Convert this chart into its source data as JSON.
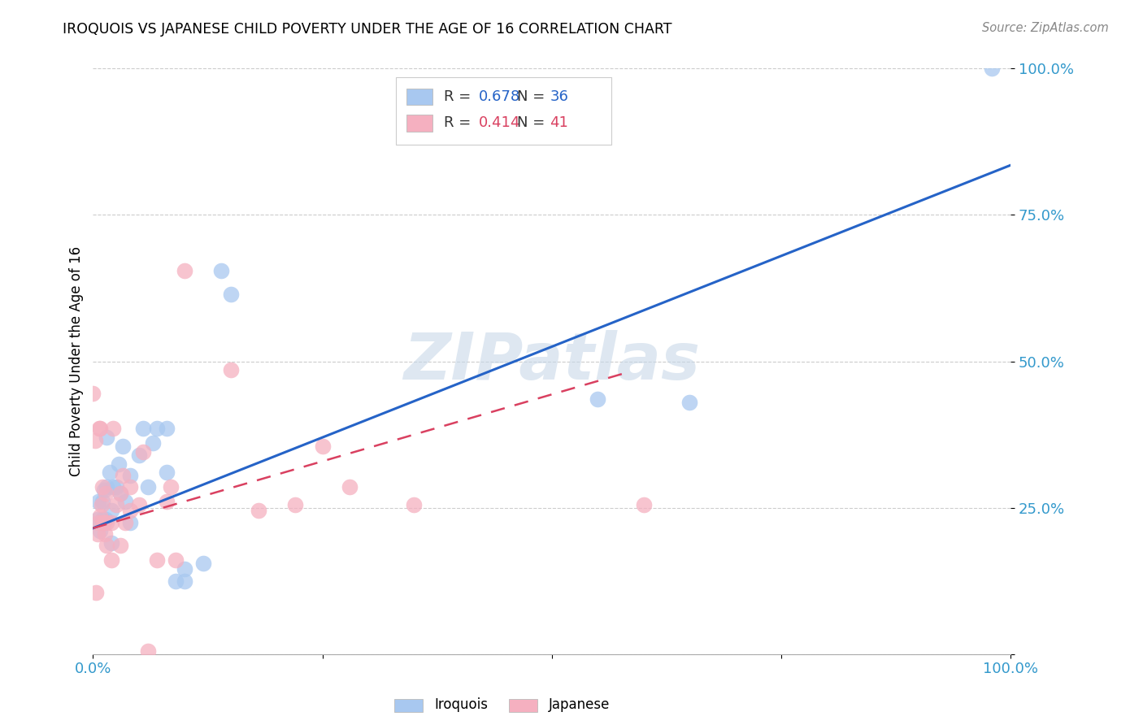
{
  "title": "IROQUOIS VS JAPANESE CHILD POVERTY UNDER THE AGE OF 16 CORRELATION CHART",
  "source": "Source: ZipAtlas.com",
  "ylabel": "Child Poverty Under the Age of 16",
  "xlim": [
    0,
    1
  ],
  "ylim": [
    0,
    1
  ],
  "xtick_positions": [
    0.0,
    0.25,
    0.5,
    0.75,
    1.0
  ],
  "ytick_positions": [
    0.0,
    0.25,
    0.5,
    0.75,
    1.0
  ],
  "xticklabels": [
    "0.0%",
    "",
    "",
    "",
    "100.0%"
  ],
  "yticklabels_right": [
    "",
    "25.0%",
    "50.0%",
    "75.0%",
    "100.0%"
  ],
  "watermark": "ZIPatlas",
  "iroquois_color": "#a8c8f0",
  "japanese_color": "#f5b0c0",
  "iroquois_line_color": "#2563c7",
  "japanese_line_color": "#d94060",
  "R_iroquois": 0.678,
  "N_iroquois": 36,
  "R_japanese": 0.414,
  "N_japanese": 41,
  "blue_line": [
    0.0,
    1.0,
    0.215,
    0.835
  ],
  "pink_line": [
    0.0,
    0.58,
    0.215,
    0.48
  ],
  "iroquois_scatter": [
    [
      0.005,
      0.23
    ],
    [
      0.006,
      0.26
    ],
    [
      0.008,
      0.21
    ],
    [
      0.01,
      0.26
    ],
    [
      0.01,
      0.23
    ],
    [
      0.012,
      0.28
    ],
    [
      0.014,
      0.23
    ],
    [
      0.015,
      0.285
    ],
    [
      0.015,
      0.37
    ],
    [
      0.018,
      0.31
    ],
    [
      0.02,
      0.19
    ],
    [
      0.02,
      0.245
    ],
    [
      0.022,
      0.285
    ],
    [
      0.025,
      0.285
    ],
    [
      0.028,
      0.325
    ],
    [
      0.03,
      0.275
    ],
    [
      0.032,
      0.355
    ],
    [
      0.035,
      0.26
    ],
    [
      0.04,
      0.225
    ],
    [
      0.04,
      0.305
    ],
    [
      0.05,
      0.34
    ],
    [
      0.055,
      0.385
    ],
    [
      0.06,
      0.285
    ],
    [
      0.065,
      0.36
    ],
    [
      0.07,
      0.385
    ],
    [
      0.08,
      0.31
    ],
    [
      0.08,
      0.385
    ],
    [
      0.09,
      0.125
    ],
    [
      0.1,
      0.145
    ],
    [
      0.1,
      0.125
    ],
    [
      0.12,
      0.155
    ],
    [
      0.14,
      0.655
    ],
    [
      0.15,
      0.615
    ],
    [
      0.55,
      0.435
    ],
    [
      0.65,
      0.43
    ],
    [
      0.98,
      1.0
    ]
  ],
  "japanese_scatter": [
    [
      0.0,
      0.445
    ],
    [
      0.002,
      0.365
    ],
    [
      0.003,
      0.105
    ],
    [
      0.005,
      0.205
    ],
    [
      0.006,
      0.225
    ],
    [
      0.007,
      0.385
    ],
    [
      0.008,
      0.235
    ],
    [
      0.008,
      0.385
    ],
    [
      0.009,
      0.255
    ],
    [
      0.01,
      0.225
    ],
    [
      0.01,
      0.285
    ],
    [
      0.012,
      0.225
    ],
    [
      0.013,
      0.205
    ],
    [
      0.014,
      0.275
    ],
    [
      0.015,
      0.185
    ],
    [
      0.015,
      0.225
    ],
    [
      0.02,
      0.16
    ],
    [
      0.02,
      0.225
    ],
    [
      0.022,
      0.385
    ],
    [
      0.025,
      0.255
    ],
    [
      0.03,
      0.275
    ],
    [
      0.03,
      0.185
    ],
    [
      0.032,
      0.305
    ],
    [
      0.035,
      0.225
    ],
    [
      0.04,
      0.285
    ],
    [
      0.04,
      0.245
    ],
    [
      0.05,
      0.255
    ],
    [
      0.055,
      0.345
    ],
    [
      0.06,
      0.005
    ],
    [
      0.07,
      0.16
    ],
    [
      0.08,
      0.26
    ],
    [
      0.085,
      0.285
    ],
    [
      0.09,
      0.16
    ],
    [
      0.1,
      0.655
    ],
    [
      0.15,
      0.485
    ],
    [
      0.18,
      0.245
    ],
    [
      0.22,
      0.255
    ],
    [
      0.25,
      0.355
    ],
    [
      0.28,
      0.285
    ],
    [
      0.35,
      0.255
    ],
    [
      0.6,
      0.255
    ]
  ]
}
